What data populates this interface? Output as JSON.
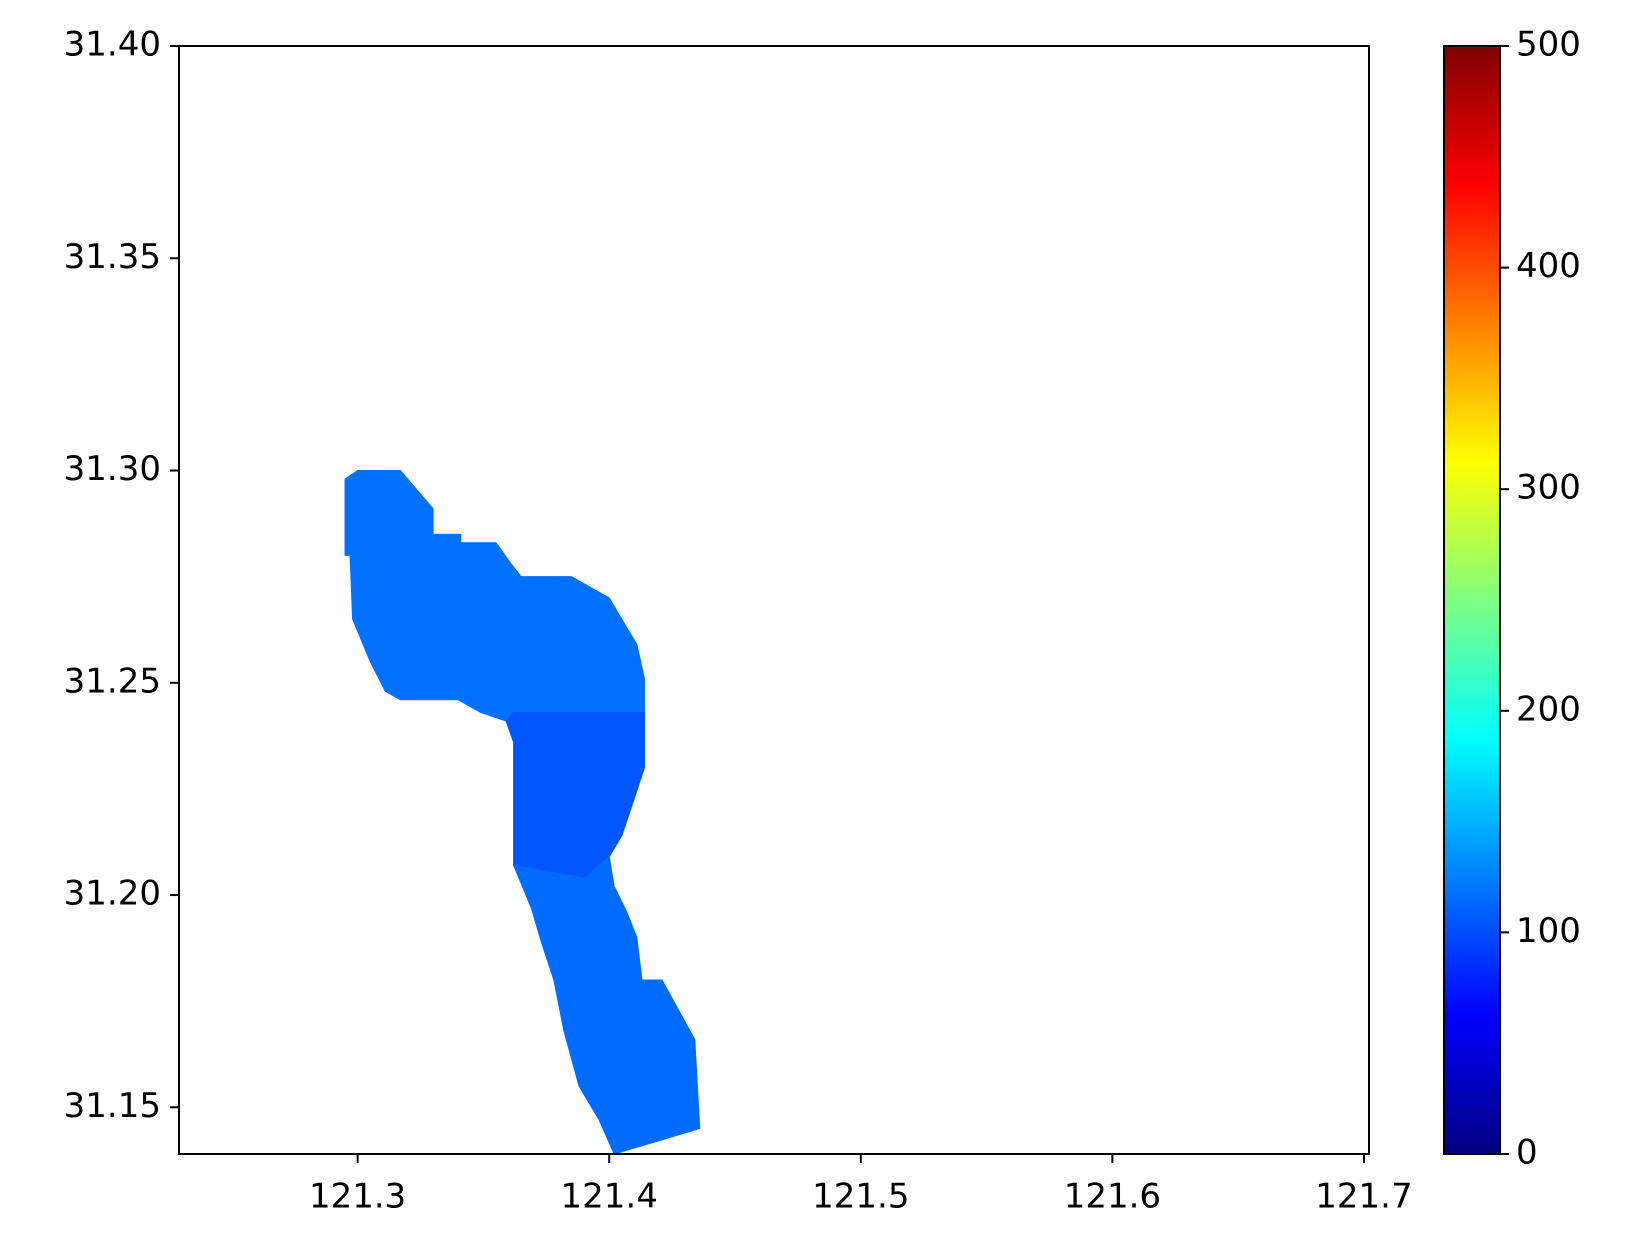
{
  "chart_data": {
    "type": "map",
    "colormap": "jet",
    "xlim": [
      121.229,
      121.702
    ],
    "ylim": [
      31.139,
      31.4
    ],
    "xticks": [
      {
        "value": 121.3,
        "label": "121.3"
      },
      {
        "value": 121.4,
        "label": "121.4"
      },
      {
        "value": 121.5,
        "label": "121.5"
      },
      {
        "value": 121.6,
        "label": "121.6"
      },
      {
        "value": 121.7,
        "label": "121.7"
      }
    ],
    "yticks": [
      {
        "value": 31.15,
        "label": "31.15"
      },
      {
        "value": 31.2,
        "label": "31.20"
      },
      {
        "value": 31.25,
        "label": "31.25"
      },
      {
        "value": 31.3,
        "label": "31.30"
      },
      {
        "value": 31.35,
        "label": "31.35"
      },
      {
        "value": 31.4,
        "label": "31.40"
      }
    ],
    "clim": [
      0,
      500
    ],
    "cticks": [
      0,
      100,
      200,
      300,
      400,
      500
    ],
    "patches": [
      {
        "value": 118,
        "points": [
          [
            121.295,
            31.298
          ],
          [
            121.3,
            31.3
          ],
          [
            121.317,
            31.3
          ],
          [
            121.33,
            31.291
          ],
          [
            121.33,
            31.285
          ],
          [
            121.341,
            31.285
          ],
          [
            121.341,
            31.283
          ],
          [
            121.355,
            31.283
          ],
          [
            121.361,
            31.278
          ],
          [
            121.365,
            31.275
          ],
          [
            121.385,
            31.275
          ],
          [
            121.4,
            31.27
          ],
          [
            121.407,
            31.263
          ],
          [
            121.411,
            31.259
          ],
          [
            121.414,
            31.251
          ],
          [
            121.414,
            31.243
          ],
          [
            121.362,
            31.243
          ],
          [
            121.359,
            31.241
          ],
          [
            121.349,
            31.243
          ],
          [
            121.34,
            31.246
          ],
          [
            121.317,
            31.246
          ],
          [
            121.311,
            31.248
          ],
          [
            121.305,
            31.255
          ],
          [
            121.298,
            31.265
          ],
          [
            121.297,
            31.28
          ],
          [
            121.295,
            31.28
          ]
        ]
      },
      {
        "value": 105,
        "points": [
          [
            121.362,
            31.243
          ],
          [
            121.414,
            31.243
          ],
          [
            121.414,
            31.23
          ],
          [
            121.409,
            31.221
          ],
          [
            121.405,
            31.214
          ],
          [
            121.4,
            31.209
          ],
          [
            121.39,
            31.204
          ],
          [
            121.362,
            31.207
          ],
          [
            121.362,
            31.236
          ],
          [
            121.359,
            31.241
          ]
        ]
      },
      {
        "value": 115,
        "points": [
          [
            121.362,
            31.207
          ],
          [
            121.39,
            31.204
          ],
          [
            121.4,
            31.209
          ],
          [
            121.402,
            31.202
          ],
          [
            121.407,
            31.196
          ],
          [
            121.411,
            31.19
          ],
          [
            121.413,
            31.18
          ],
          [
            121.421,
            31.18
          ],
          [
            121.434,
            31.166
          ],
          [
            121.436,
            31.145
          ],
          [
            121.402,
            31.139
          ],
          [
            121.396,
            31.147
          ],
          [
            121.388,
            31.155
          ],
          [
            121.382,
            31.168
          ],
          [
            121.378,
            31.18
          ],
          [
            121.373,
            31.189
          ],
          [
            121.369,
            31.197
          ]
        ]
      }
    ]
  }
}
